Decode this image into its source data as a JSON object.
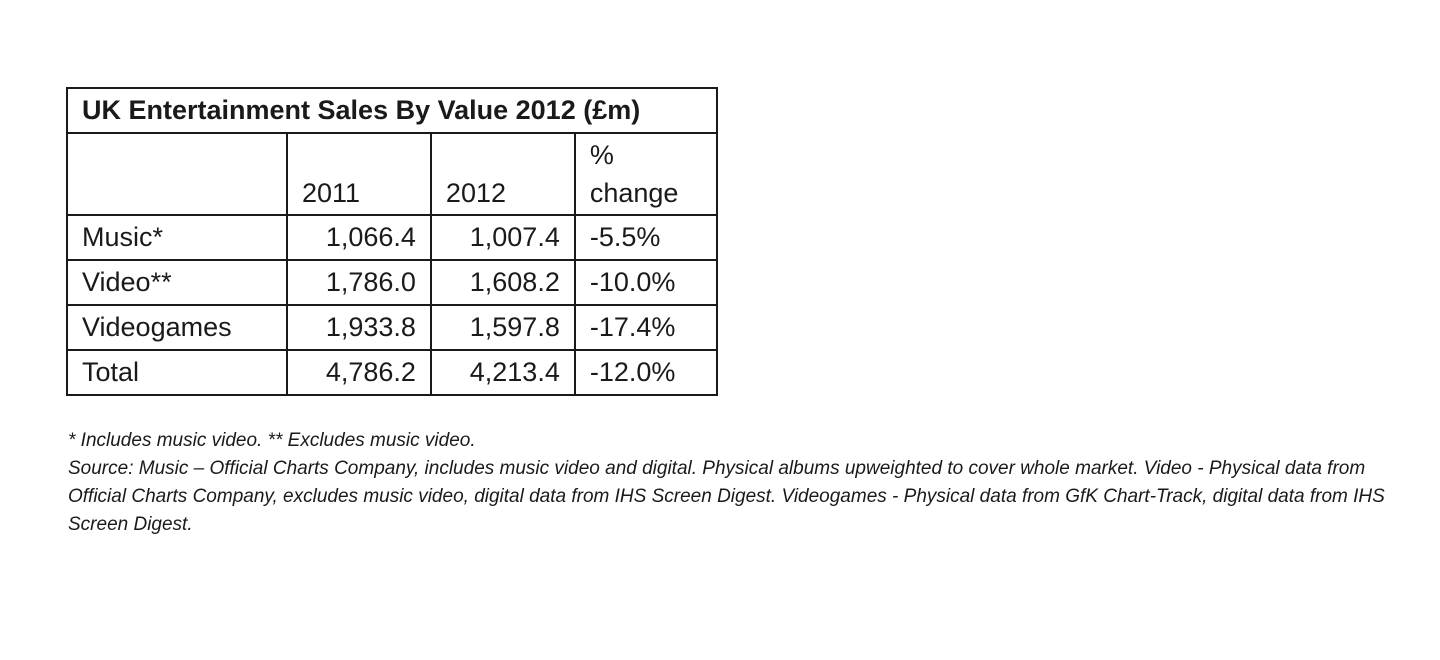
{
  "table": {
    "title": "UK Entertainment Sales By Value 2012 (£m)",
    "headers": {
      "category": "",
      "y2011": "2011",
      "y2012": "2012",
      "change_line1": "%",
      "change_line2": "change"
    },
    "rows": [
      {
        "category": "Music*",
        "y2011": "1,066.4",
        "y2012": "1,007.4",
        "change": "-5.5%"
      },
      {
        "category": "Video**",
        "y2011": "1,786.0",
        "y2012": "1,608.2",
        "change": "-10.0%"
      },
      {
        "category": "Videogames",
        "y2011": "1,933.8",
        "y2012": "1,597.8",
        "change": "-17.4%"
      },
      {
        "category": "Total",
        "y2011": "4,786.2",
        "y2012": "4,213.4",
        "change": "-12.0%"
      }
    ]
  },
  "notes": {
    "footnote": "* Includes music video. **  Excludes music video.",
    "source": "Source: Music – Official Charts Company, includes music video and digital.  Physical albums upweighted to cover whole market. Video - Physical data from Official Charts Company, excludes music video, digital data from IHS Screen Digest. Videogames - Physical data from GfK Chart-Track, digital data from IHS Screen Digest."
  }
}
